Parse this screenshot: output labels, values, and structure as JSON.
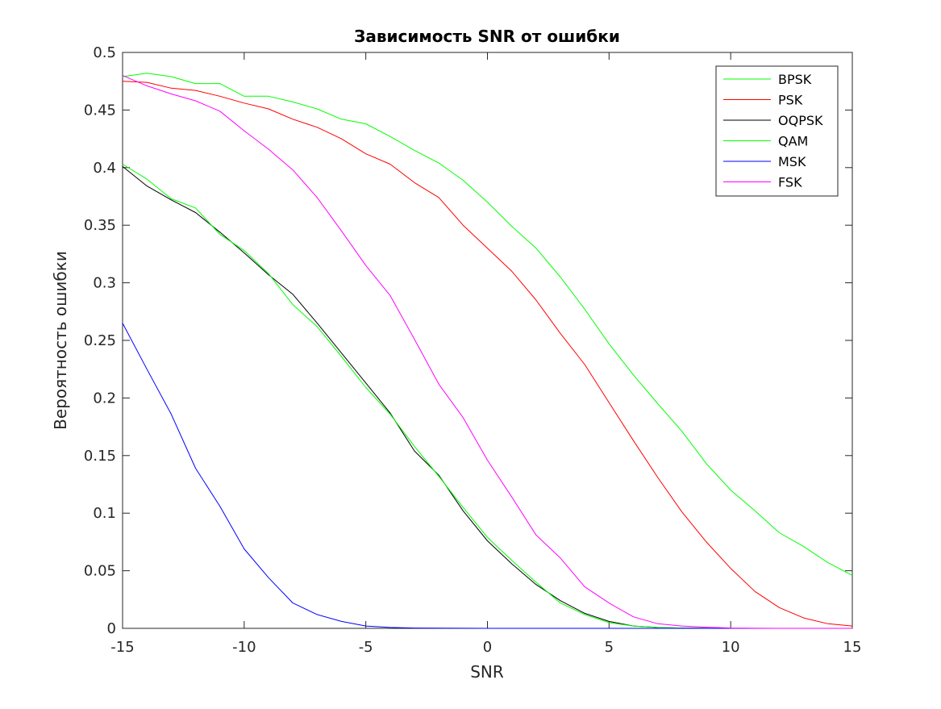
{
  "chart_data": {
    "type": "line",
    "title": "Зависимость SNR от ошибки",
    "xlabel": "SNR",
    "ylabel": "Вероятность ошибки",
    "xlim": [
      -15,
      15
    ],
    "ylim": [
      0,
      0.5
    ],
    "xticks": [
      -15,
      -10,
      -5,
      0,
      5,
      10,
      15
    ],
    "xtick_labels": [
      "-15",
      "-10",
      "-5",
      "0",
      "5",
      "10",
      "15"
    ],
    "yticks": [
      0,
      0.05,
      0.1,
      0.15,
      0.2,
      0.25,
      0.3,
      0.35,
      0.4,
      0.45,
      0.5
    ],
    "ytick_labels": [
      "0",
      "0.05",
      "0.1",
      "0.15",
      "0.2",
      "0.25",
      "0.3",
      "0.35",
      "0.4",
      "0.45",
      "0.5"
    ],
    "grid": false,
    "legend_position": "top-right",
    "x": [
      -15,
      -14,
      -13,
      -12,
      -11,
      -10,
      -9,
      -8,
      -7,
      -6,
      -5,
      -4,
      -3,
      -2,
      -1,
      0,
      1,
      2,
      3,
      4,
      5,
      6,
      7,
      8,
      9,
      10,
      11,
      12,
      13,
      14,
      15
    ],
    "series": [
      {
        "name": "BPSK",
        "color": "#00ff00",
        "values": [
          0.479,
          0.482,
          0.479,
          0.473,
          0.473,
          0.462,
          0.462,
          0.457,
          0.451,
          0.442,
          0.438,
          0.427,
          0.415,
          0.404,
          0.389,
          0.37,
          0.349,
          0.33,
          0.305,
          0.277,
          0.247,
          0.22,
          0.195,
          0.171,
          0.143,
          0.12,
          0.102,
          0.083,
          0.071,
          0.057,
          0.046
        ]
      },
      {
        "name": "PSK",
        "color": "#ff0000",
        "values": [
          0.475,
          0.474,
          0.469,
          0.467,
          0.462,
          0.456,
          0.451,
          0.442,
          0.435,
          0.425,
          0.412,
          0.403,
          0.387,
          0.374,
          0.35,
          0.33,
          0.31,
          0.285,
          0.256,
          0.229,
          0.196,
          0.163,
          0.131,
          0.101,
          0.075,
          0.052,
          0.032,
          0.018,
          0.009,
          0.004,
          0.002
        ]
      },
      {
        "name": "OQPSK",
        "color": "#000000",
        "values": [
          0.401,
          0.384,
          0.372,
          0.361,
          0.344,
          0.326,
          0.307,
          0.29,
          0.265,
          0.239,
          0.213,
          0.187,
          0.154,
          0.133,
          0.102,
          0.076,
          0.056,
          0.038,
          0.024,
          0.013,
          0.006,
          0.002,
          0.0008,
          0.0003,
          0.0001,
          0,
          0,
          0,
          0,
          0,
          0
        ]
      },
      {
        "name": "QAM",
        "color": "#00ff00",
        "values": [
          0.403,
          0.39,
          0.373,
          0.365,
          0.342,
          0.328,
          0.308,
          0.281,
          0.262,
          0.236,
          0.209,
          0.186,
          0.158,
          0.132,
          0.105,
          0.079,
          0.059,
          0.04,
          0.022,
          0.012,
          0.005,
          0.002,
          0.0007,
          0.0003,
          0.0001,
          0,
          0,
          0,
          0,
          0,
          0
        ]
      },
      {
        "name": "MSK",
        "color": "#0000ff",
        "values": [
          0.265,
          0.225,
          0.186,
          0.139,
          0.106,
          0.069,
          0.044,
          0.022,
          0.012,
          0.006,
          0.002,
          0.0008,
          0.0003,
          0.0002,
          0.0001,
          0,
          0,
          0,
          0,
          0,
          0,
          0,
          0,
          0,
          0,
          0,
          0,
          0,
          0,
          0,
          0
        ]
      },
      {
        "name": "FSK",
        "color": "#ff00ff",
        "values": [
          0.48,
          0.471,
          0.464,
          0.458,
          0.449,
          0.432,
          0.416,
          0.398,
          0.374,
          0.345,
          0.315,
          0.289,
          0.251,
          0.212,
          0.183,
          0.146,
          0.114,
          0.081,
          0.061,
          0.036,
          0.022,
          0.01,
          0.004,
          0.002,
          0.001,
          0.0003,
          0.0001,
          0,
          0,
          0,
          0
        ]
      }
    ]
  }
}
